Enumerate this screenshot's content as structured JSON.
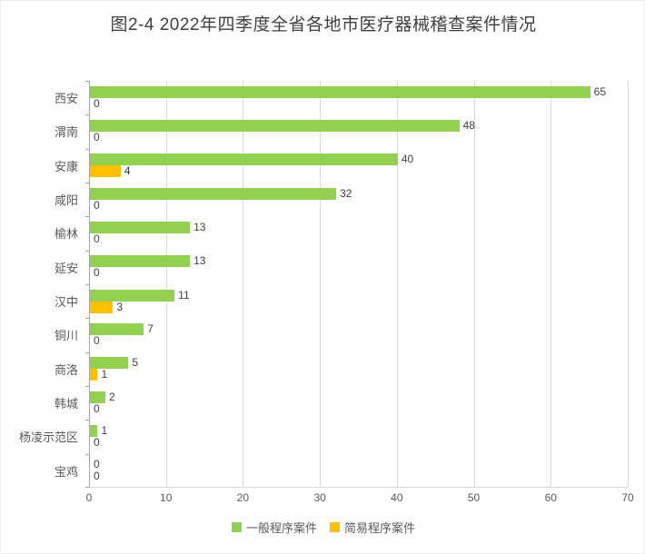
{
  "chart_data": {
    "type": "bar",
    "orientation": "horizontal",
    "title": "图2-4 2022年四季度全省各地市医疗器械稽查案件情况",
    "categories": [
      "西安",
      "渭南",
      "安康",
      "咸阳",
      "榆林",
      "延安",
      "汉中",
      "铜川",
      "商洛",
      "韩城",
      "杨凌示范区",
      "宝鸡"
    ],
    "series": [
      {
        "name": "一般程序案件",
        "color": "#92D050",
        "values": [
          65,
          48,
          40,
          32,
          13,
          13,
          11,
          7,
          5,
          2,
          1,
          0
        ]
      },
      {
        "name": "简易程序案件",
        "color": "#FFC000",
        "values": [
          0,
          0,
          4,
          0,
          0,
          0,
          3,
          0,
          1,
          0,
          0,
          0
        ]
      }
    ],
    "xlabel": "",
    "ylabel": "",
    "xlim": [
      0,
      70
    ],
    "x_ticks": [
      0,
      10,
      20,
      30,
      40,
      50,
      60,
      70
    ],
    "grid": true,
    "legend_position": "bottom",
    "data_labels": true
  },
  "colors": {
    "grid": "#d9d9d9",
    "axis": "#a6a6a6",
    "tick_text": "#595959",
    "title_text": "#3f3f3f",
    "label_text": "#404040",
    "background": "#ffffff"
  }
}
